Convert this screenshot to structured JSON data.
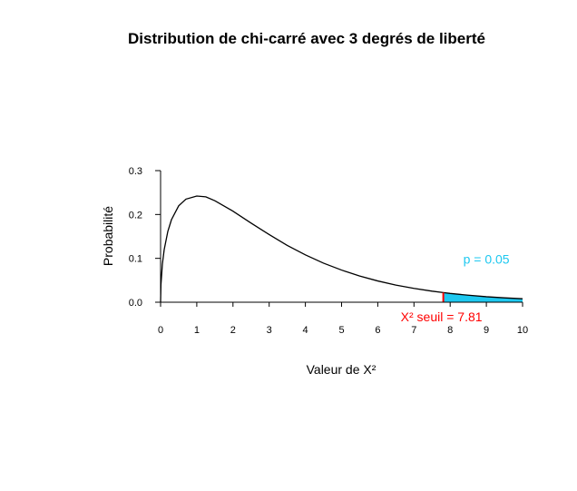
{
  "chart_data": {
    "type": "line",
    "title": "Distribution de chi-carré avec 3 degrés de liberté",
    "xlabel": "Valeur de X²",
    "ylabel": "Probabilité",
    "xlim": [
      0,
      10
    ],
    "ylim": [
      0,
      0.3
    ],
    "x_ticks": [
      0,
      1,
      2,
      3,
      4,
      5,
      6,
      7,
      8,
      9,
      10
    ],
    "y_ticks": [
      "0.0",
      "0.1",
      "0.2",
      "0.3"
    ],
    "grid": false,
    "series": [
      {
        "values_x": [
          0,
          0.01,
          0.05,
          0.1,
          0.2,
          0.3,
          0.5,
          0.7,
          1,
          1.25,
          1.5,
          2,
          2.5,
          3,
          3.5,
          4,
          4.5,
          5,
          5.5,
          6,
          6.5,
          7,
          7.5,
          7.81,
          8,
          8.5,
          9,
          9.5,
          10
        ],
        "values_y": [
          0,
          0.0398,
          0.0872,
          0.12,
          0.1614,
          0.188,
          0.2197,
          0.235,
          0.242,
          0.2402,
          0.2313,
          0.2076,
          0.1804,
          0.1542,
          0.1294,
          0.108,
          0.0891,
          0.0733,
          0.0597,
          0.0485,
          0.0391,
          0.0316,
          0.0252,
          0.022,
          0.02,
          0.016,
          0.0125,
          0.01,
          0.0079
        ],
        "color": "#000000"
      }
    ],
    "critical_value": 7.81,
    "critical_label": "X² seuil = 7.81",
    "critical_color": "#ff0000",
    "p_label": "p = 0.05",
    "tail_color": "#1ec8f0"
  }
}
